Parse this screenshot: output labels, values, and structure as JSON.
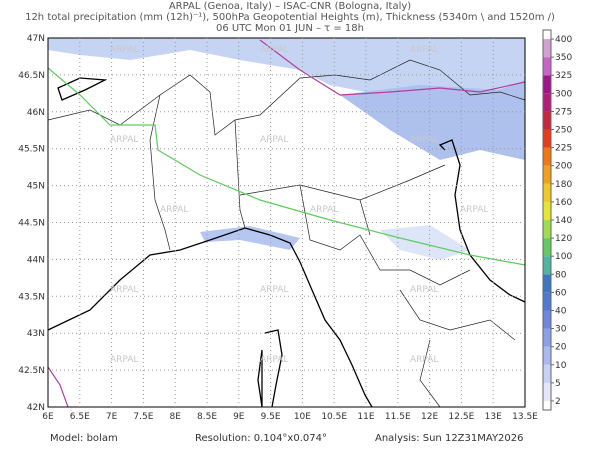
{
  "header": {
    "line1": "ARPAL (Genoa, Italy)  –  ISAC-CNR (Bologna, Italy)",
    "line2": "12h total precipitation (mm (12h)⁻¹), 500hPa Geopotential Heights (m), Thickness (5340m \\ and 1520m /)",
    "line3": "06 UTC Mon 01 JUN  –  τ = 18h"
  },
  "map": {
    "watermark": "ARPAL",
    "lon_labels": [
      "6E",
      "6.5E",
      "7E",
      "7.5E",
      "8E",
      "8.5E",
      "9E",
      "9.5E",
      "10E",
      "10.5E",
      "11E",
      "11.5E",
      "12E",
      "12.5E",
      "13E",
      "13.5E"
    ],
    "lat_labels": [
      "42N",
      "42.5N",
      "43N",
      "43.5N",
      "44N",
      "44.5N",
      "45N",
      "45.5N",
      "46N",
      "46.5N",
      "47N"
    ]
  },
  "colorbar": {
    "labels": [
      "2",
      "5",
      "10",
      "20",
      "30",
      "40",
      "60",
      "80",
      "100",
      "120",
      "140",
      "160",
      "180",
      "200",
      "225",
      "250",
      "275",
      "300",
      "325",
      "350",
      "400"
    ],
    "colors": [
      "#e6e6fa",
      "#c8d2f5",
      "#aab9ef",
      "#8ca0e6",
      "#6e87dc",
      "#507ad2",
      "#3c78be",
      "#50b4a0",
      "#64c864",
      "#a0dc50",
      "#e6e632",
      "#f0c828",
      "#f0a01e",
      "#f07814",
      "#e63c1e",
      "#c8283c",
      "#b41e78",
      "#a0148c",
      "#c864c8",
      "#d2a0d2"
    ]
  },
  "footer": {
    "model": "Model: bolam",
    "resolution": "Resolution: 0.104°x0.074°",
    "analysis": "Analysis: Sun 12Z31MAY2026"
  }
}
